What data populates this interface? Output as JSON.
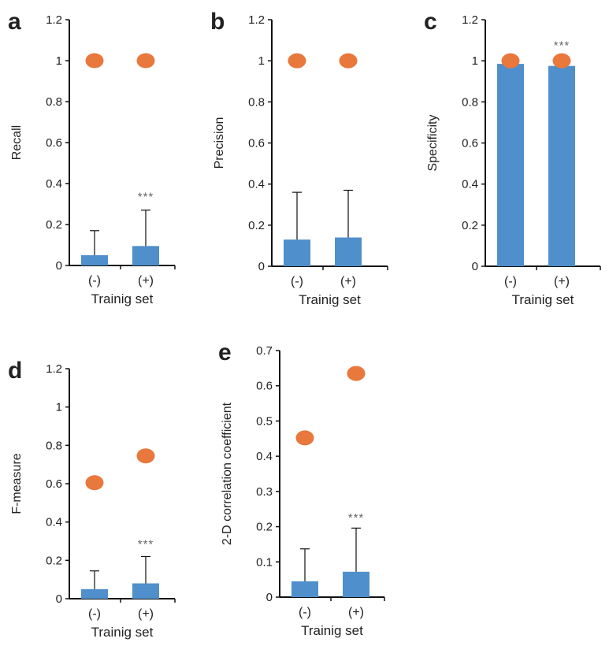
{
  "colors": {
    "bar": "#4f8fcb",
    "dot": "#e8783c",
    "axis": "#111111",
    "stars": "#666666"
  },
  "chart_data": [
    {
      "panel": "a",
      "type": "bar",
      "ylabel": "Recall",
      "xlabel": "Trainig set",
      "categories": [
        "(-)",
        "(+)"
      ],
      "ylim": [
        0,
        1.2
      ],
      "yticks": [
        "0",
        "0.2",
        "0.4",
        "0.6",
        "0.8",
        "1",
        "1.2"
      ],
      "ytick_values": [
        0,
        0.2,
        0.4,
        0.6,
        0.8,
        1,
        1.2
      ],
      "bar_values": [
        0.05,
        0.095
      ],
      "error_upper": [
        0.17,
        0.27
      ],
      "dot_values": [
        1.0,
        1.0
      ],
      "annotation": {
        "text": "***",
        "category": 1,
        "y": 0.34
      }
    },
    {
      "panel": "b",
      "type": "bar",
      "ylabel": "Precision",
      "xlabel": "Trainig set",
      "categories": [
        "(-)",
        "(+)"
      ],
      "ylim": [
        0,
        1.2
      ],
      "yticks": [
        "0",
        "0.2",
        "0.4",
        "0.6",
        "0.8",
        "1",
        "1.2"
      ],
      "ytick_values": [
        0,
        0.2,
        0.4,
        0.6,
        0.8,
        1,
        1.2
      ],
      "bar_values": [
        0.13,
        0.14
      ],
      "error_upper": [
        0.36,
        0.37
      ],
      "dot_values": [
        1.0,
        1.0
      ],
      "annotation": null
    },
    {
      "panel": "c",
      "type": "bar",
      "ylabel": "Specificity",
      "xlabel": "Trainig set",
      "categories": [
        "(-)",
        "(+)"
      ],
      "ylim": [
        0,
        1.2
      ],
      "yticks": [
        "0",
        "0.2",
        "0.4",
        "0.6",
        "0.8",
        "1",
        "1.2"
      ],
      "ytick_values": [
        0,
        0.2,
        0.4,
        0.6,
        0.8,
        1,
        1.2
      ],
      "bar_values": [
        0.985,
        0.975
      ],
      "error_upper": [
        null,
        null
      ],
      "dot_values": [
        1.0,
        1.0
      ],
      "annotation": {
        "text": "***",
        "category": 1,
        "y": 1.08
      }
    },
    {
      "panel": "d",
      "type": "bar",
      "ylabel": "F-measure",
      "xlabel": "Trainig set",
      "categories": [
        "(-)",
        "(+)"
      ],
      "ylim": [
        0,
        1.2
      ],
      "yticks": [
        "0",
        "0.2",
        "0.4",
        "0.6",
        "0.8",
        "1",
        "1.2"
      ],
      "ytick_values": [
        0,
        0.2,
        0.4,
        0.6,
        0.8,
        1,
        1.2
      ],
      "bar_values": [
        0.05,
        0.08
      ],
      "error_upper": [
        0.145,
        0.22
      ],
      "dot_values": [
        0.605,
        0.745
      ],
      "annotation": {
        "text": "***",
        "category": 1,
        "y": 0.29
      }
    },
    {
      "panel": "e",
      "type": "bar",
      "ylabel": "2-D correlation coefficient",
      "xlabel": "Trainig set",
      "categories": [
        "(-)",
        "(+)"
      ],
      "ylim": [
        0,
        0.7
      ],
      "yticks": [
        "0",
        "0.1",
        "0.2",
        "0.3",
        "0.4",
        "0.5",
        "0.6",
        "0.7"
      ],
      "ytick_values": [
        0,
        0.1,
        0.2,
        0.3,
        0.4,
        0.5,
        0.6,
        0.7
      ],
      "bar_values": [
        0.045,
        0.072
      ],
      "error_upper": [
        0.137,
        0.196
      ],
      "dot_values": [
        0.452,
        0.635
      ],
      "annotation": {
        "text": "***",
        "category": 1,
        "y": 0.228
      }
    }
  ]
}
